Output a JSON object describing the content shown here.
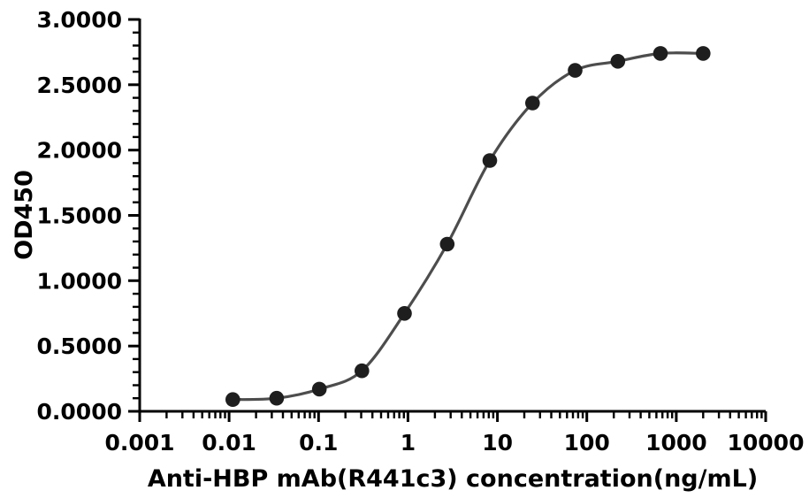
{
  "figure": {
    "background": "#ffffff",
    "text_color": "#000000",
    "axis_color": "#000000"
  },
  "chart_data": {
    "type": "line",
    "title": "",
    "xlabel": "Anti-HBP mAb(R441c3) concentration(ng/mL)",
    "ylabel": "OD450",
    "x_scale": "log",
    "xlim": [
      0.001,
      10000
    ],
    "ylim": [
      0,
      3
    ],
    "grid": false,
    "legend_position": "none",
    "x_tick_values": [
      0.001,
      0.01,
      0.1,
      1,
      10,
      100,
      1000,
      10000
    ],
    "x_tick_labels": [
      "0.001",
      "0.01",
      "0.1",
      "1",
      "10",
      "100",
      "1000",
      "10000"
    ],
    "y_tick_values": [
      0,
      0.5,
      1,
      1.5,
      2,
      2.5,
      3
    ],
    "y_tick_labels": [
      "0.0000",
      "0.5000",
      "1.0000",
      "1.5000",
      "2.0000",
      "2.5000",
      "3.0000"
    ],
    "y_minor_step": 0.1,
    "series": [
      {
        "name": "Anti-HBP mAb(R441c3)",
        "marker": "circle",
        "marker_color": "#1e1e1e",
        "line_color": "#4d4d4d",
        "x": [
          0.011,
          0.034,
          0.102,
          0.305,
          0.914,
          2.743,
          8.23,
          24.69,
          74.07,
          222.2,
          666.7,
          2000
        ],
        "y": [
          0.09,
          0.1,
          0.17,
          0.31,
          0.75,
          1.28,
          1.92,
          2.36,
          2.61,
          2.68,
          2.74,
          2.74
        ]
      }
    ]
  }
}
